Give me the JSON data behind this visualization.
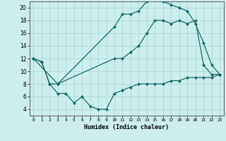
{
  "xlabel": "Humidex (Indice chaleur)",
  "bg_color": "#cceeed",
  "grid_color": "#add8d8",
  "line_color": "#1a6b6b",
  "xlim": [
    -0.5,
    23.5
  ],
  "ylim": [
    3,
    21
  ],
  "yticks": [
    4,
    6,
    8,
    10,
    12,
    14,
    16,
    18,
    20
  ],
  "xticks": [
    0,
    1,
    2,
    3,
    4,
    5,
    6,
    7,
    8,
    9,
    10,
    11,
    12,
    13,
    14,
    15,
    16,
    17,
    18,
    19,
    20,
    21,
    22,
    23
  ],
  "series1_x": [
    0,
    1,
    2,
    3,
    10,
    11,
    12,
    13,
    14,
    15,
    16,
    17,
    18,
    19,
    20,
    21,
    22,
    23
  ],
  "series1_y": [
    12,
    11.5,
    8,
    8,
    12,
    12,
    13,
    14,
    16,
    18,
    18,
    17.5,
    18,
    17.5,
    18,
    11,
    9.5,
    9.5
  ],
  "series2_x": [
    0,
    3,
    10,
    11,
    12,
    13,
    14,
    15,
    16,
    17,
    18,
    19,
    20,
    21,
    22,
    23
  ],
  "series2_y": [
    12,
    8,
    17,
    19,
    19,
    19.5,
    21,
    21.5,
    21,
    20.5,
    20,
    19.5,
    17.5,
    14.5,
    11,
    9.5
  ],
  "series3_x": [
    0,
    1,
    2,
    3,
    4,
    5,
    6,
    7,
    8,
    9,
    10,
    11,
    12,
    13,
    14,
    15,
    16,
    17,
    18,
    19,
    20,
    21,
    22,
    23
  ],
  "series3_y": [
    12,
    11.5,
    8,
    6.5,
    6.5,
    5,
    6,
    4.5,
    4,
    4,
    6.5,
    7,
    7.5,
    8,
    8,
    8,
    8,
    8.5,
    8.5,
    9,
    9,
    9,
    9,
    9.5
  ]
}
